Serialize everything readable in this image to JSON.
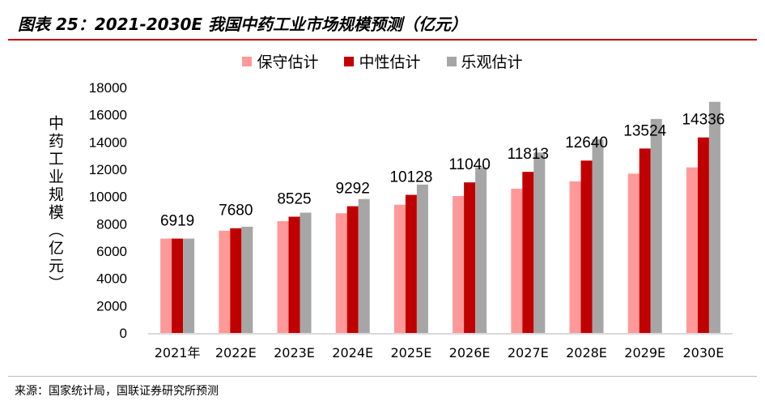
{
  "title": "图表 25：2021-2030E 我国中药工业市场规模预测（亿元）",
  "source": "来源：国家统计局，国联证券研究所预测",
  "chart_data": {
    "type": "bar",
    "title": "图表 25：2021-2030E 我国中药工业市场规模预测（亿元）",
    "ylabel": "中药工业规模（亿元）",
    "xlabel": "",
    "ylim": [
      0,
      18000
    ],
    "yticks": [
      0,
      2000,
      4000,
      6000,
      8000,
      10000,
      12000,
      14000,
      16000,
      18000
    ],
    "grid": false,
    "legend": "top",
    "categories": [
      "2021年",
      "2022E",
      "2023E",
      "2024E",
      "2025E",
      "2026E",
      "2027E",
      "2028E",
      "2029E",
      "2030E"
    ],
    "series": [
      {
        "name": "保守估计",
        "color": "#ff9999",
        "values": [
          6919,
          7500,
          8200,
          8780,
          9400,
          10040,
          10580,
          11120,
          11680,
          12140
        ]
      },
      {
        "name": "中性估计",
        "color": "#c00000",
        "values": [
          6919,
          7680,
          8525,
          9292,
          10128,
          11040,
          11813,
          12640,
          13524,
          14336
        ]
      },
      {
        "name": "乐观估计",
        "color": "#a6a6a6",
        "values": [
          6919,
          7790,
          8820,
          9820,
          10880,
          12140,
          13230,
          14190,
          15690,
          16950
        ]
      }
    ],
    "data_labels": [
      "6919",
      "7680",
      "8525",
      "9292",
      "10128",
      "11040",
      "11813",
      "12640",
      "13524",
      "14336"
    ]
  }
}
